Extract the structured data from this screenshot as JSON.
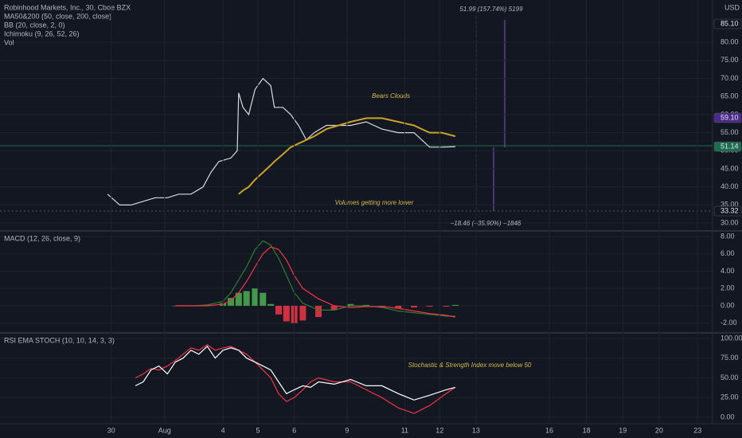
{
  "chart_data": [
    {
      "type": "line",
      "title": "Robinhood Markets, Inc., 30, Cboe BZX",
      "indicators": [
        "MA50&200 (50, close, 200, close)",
        "BB (20, close, 2, 0)",
        "Ichimoku (9, 26, 52, 26)",
        "Vol"
      ],
      "currency": "USD",
      "annotations": [
        "Bears Clouds",
        "Volumes getting more lower",
        "51.99 (157.74%) 5199",
        "−18.46 (−35.90%) −1846"
      ],
      "xlim": [
        0,
        100
      ],
      "ylim": [
        27.81,
        91.71
      ],
      "grid": true,
      "yticks": [
        {
          "value": 30,
          "label": "30.00"
        },
        {
          "value": 35,
          "label": "35.00"
        },
        {
          "value": 40,
          "label": "40.00"
        },
        {
          "value": 45,
          "label": "45.00"
        },
        {
          "value": 50,
          "label": "50.00"
        },
        {
          "value": 55,
          "label": "55.00"
        },
        {
          "value": 60,
          "label": "60.00"
        },
        {
          "value": 65,
          "label": "65.00"
        },
        {
          "value": 70,
          "label": "70.00"
        },
        {
          "value": 75,
          "label": "75.00"
        },
        {
          "value": 80,
          "label": "80.00"
        }
      ],
      "markers": [
        {
          "value": 85.1,
          "label": "85.10",
          "color": "#131722"
        },
        {
          "value": 59.1,
          "label": "59.10",
          "color": "#4a2a8a"
        },
        {
          "value": 51.14,
          "label": "51.14",
          "color": "#1e6b4f"
        },
        {
          "value": 33.32,
          "label": "33.32",
          "color": "#131722"
        }
      ],
      "x": [
        15.1,
        16.8,
        18.4,
        20.1,
        21.8,
        23.5,
        25.1,
        26.8,
        28.5,
        29.6,
        30.7,
        32.4,
        33.3,
        33.5,
        34.1,
        34.9,
        35.8,
        36.9,
        38.0,
        38.5,
        39.7,
        40.8,
        41.9,
        43.0,
        44.1,
        45.8,
        47.5,
        49.2,
        51.4,
        53.6,
        55.9,
        58.1,
        59.2,
        60.3,
        62.0,
        63.9
      ],
      "series": [
        {
          "type": "line",
          "color": "#d9d9d9",
          "values": [
            38,
            35,
            35,
            36,
            37,
            37,
            38,
            38,
            40,
            44,
            47,
            48,
            50,
            66,
            62,
            60,
            67,
            70,
            68,
            62,
            62,
            60,
            57,
            53,
            55,
            57,
            57,
            57,
            58,
            56,
            55,
            55,
            53,
            51,
            51,
            51.14
          ]
        },
        {
          "type": "line",
          "color": "#c9a227",
          "values": [
            null,
            null,
            null,
            null,
            null,
            null,
            null,
            null,
            null,
            null,
            null,
            null,
            null,
            38,
            39,
            40,
            42,
            44,
            46,
            47,
            49,
            51,
            52,
            53,
            54,
            56,
            57,
            58,
            59,
            59,
            58,
            57,
            56,
            55,
            55,
            54
          ]
        }
      ]
    },
    {
      "type": "line",
      "title": "MACD (12, 26, close, 9)",
      "xlim": [
        0,
        100
      ],
      "ylim": [
        -3.13,
        8.64
      ],
      "grid": true,
      "yticks": [
        {
          "value": -2,
          "label": "-2.00"
        },
        {
          "value": 0,
          "label": "0.00"
        },
        {
          "value": 2,
          "label": "2.00"
        },
        {
          "value": 4,
          "label": "4.00"
        },
        {
          "value": 6,
          "label": "6.00"
        },
        {
          "value": 8,
          "label": "8.00"
        }
      ],
      "x": [
        24.6,
        26.8,
        29.1,
        31.3,
        32.4,
        33.5,
        34.6,
        35.8,
        36.9,
        38.0,
        39.1,
        40.2,
        41.3,
        42.5,
        44.7,
        46.9,
        49.2,
        51.4,
        53.6,
        55.9,
        58.1,
        60.3,
        62.6,
        63.9
      ],
      "series": [
        {
          "type": "bar",
          "color": "#4caf50",
          "negative_color": "#f23645",
          "values": [
            0,
            0,
            0.1,
            0.3,
            0.9,
            1.5,
            1.7,
            2,
            1.5,
            0.2,
            -1,
            -1.8,
            -2,
            -1.7,
            -1.3,
            -0.5,
            0.2,
            0.1,
            -0.1,
            -0.3,
            -0.2,
            -0.1,
            -0.1,
            0.1
          ]
        },
        {
          "type": "line",
          "color": "#2e7d32",
          "values": [
            0,
            0,
            0.1,
            0.5,
            1.5,
            3,
            4.5,
            6.5,
            7.5,
            7,
            5.5,
            3.5,
            1.5,
            0.3,
            -0.5,
            -0.5,
            0,
            0,
            -0.2,
            -0.6,
            -0.8,
            -1,
            -1.2,
            -1.2
          ]
        },
        {
          "type": "line",
          "color": "#f23645",
          "values": [
            0,
            0,
            0,
            0.2,
            0.6,
            1.5,
            2.8,
            4.5,
            6,
            6.8,
            6.5,
            5.3,
            3.5,
            2,
            0.8,
            0,
            -0.2,
            -0.1,
            -0.1,
            -0.3,
            -0.6,
            -0.9,
            -1.1,
            -1.3
          ]
        }
      ]
    },
    {
      "type": "line",
      "title": "RSI EMA STOCH (10, 10, 14, 3, 3)",
      "annotations": [
        "Stochastic & Strength Index move below 50"
      ],
      "xlim": [
        0,
        100
      ],
      "ylim": [
        -8,
        107
      ],
      "grid": true,
      "yticks": [
        {
          "value": 0,
          "label": "0.00"
        },
        {
          "value": 25,
          "label": "25.00"
        },
        {
          "value": 50,
          "label": "50.00"
        },
        {
          "value": 75,
          "label": "75.00"
        },
        {
          "value": 100,
          "label": "100.00"
        }
      ],
      "xticks": [
        {
          "value": 15.6,
          "label": "30"
        },
        {
          "value": 23.1,
          "label": "Aug"
        },
        {
          "value": 31.3,
          "label": "4"
        },
        {
          "value": 36.2,
          "label": "5"
        },
        {
          "value": 41.3,
          "label": "6"
        },
        {
          "value": 48.7,
          "label": "9"
        },
        {
          "value": 56.8,
          "label": "11"
        },
        {
          "value": 61.7,
          "label": "12"
        },
        {
          "value": 66.8,
          "label": "13"
        },
        {
          "value": 77.1,
          "label": "16"
        },
        {
          "value": 82.3,
          "label": "18"
        },
        {
          "value": 87.4,
          "label": "19"
        },
        {
          "value": 92.5,
          "label": "20"
        },
        {
          "value": 97.9,
          "label": "23"
        }
      ],
      "x": [
        19.0,
        20.1,
        21.2,
        22.3,
        23.5,
        24.6,
        25.7,
        26.8,
        27.9,
        29.1,
        30.2,
        31.3,
        32.4,
        33.5,
        34.6,
        35.8,
        36.9,
        38.0,
        39.1,
        40.2,
        41.3,
        42.5,
        43.6,
        44.7,
        46.9,
        49.2,
        51.4,
        53.6,
        55.9,
        58.1,
        60.3,
        62.6,
        63.9
      ],
      "series": [
        {
          "type": "line",
          "color": "#f23645",
          "values": [
            50,
            55,
            62,
            60,
            65,
            72,
            80,
            88,
            85,
            92,
            85,
            88,
            90,
            85,
            80,
            70,
            60,
            50,
            30,
            20,
            25,
            35,
            45,
            50,
            45,
            45,
            35,
            25,
            12,
            5,
            15,
            30,
            38
          ]
        },
        {
          "type": "line",
          "color": "#ffffff",
          "values": [
            40,
            45,
            60,
            65,
            55,
            70,
            75,
            85,
            80,
            90,
            75,
            85,
            88,
            85,
            75,
            70,
            65,
            60,
            45,
            30,
            35,
            40,
            38,
            45,
            42,
            48,
            40,
            40,
            30,
            22,
            28,
            35,
            38
          ]
        }
      ]
    }
  ]
}
